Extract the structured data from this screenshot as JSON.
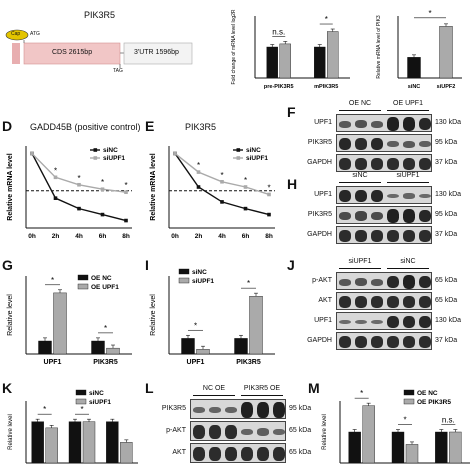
{
  "panelA": {
    "gene_title": "PIK3R5",
    "cap_label": "Cap",
    "start_codon": "ATG",
    "stop_codon": "TAG",
    "cds_label": "CDS 2615bp",
    "utr_label": "3'UTR 1596bp"
  },
  "panelB": {
    "chart_data": {
      "type": "bar",
      "ylabel": "Fold change of mRNA level log2R",
      "categories": [
        "pre-PIK3R5",
        "mPIK3R5"
      ],
      "series": [
        {
          "values": [
            1.0,
            1.0
          ],
          "color": "#111111"
        },
        {
          "values": [
            1.1,
            1.5
          ],
          "color": "#aaaaaa"
        }
      ],
      "ylim": [
        0,
        2
      ],
      "annotations": [
        "n.s.",
        "*"
      ]
    }
  },
  "panelC": {
    "chart_data": {
      "type": "bar",
      "ylabel": "Relative mRNA level of PIK3",
      "categories": [
        "siNC",
        "siUPF2"
      ],
      "values": [
        1.0,
        2.5
      ],
      "colors": [
        "#111111",
        "#aaaaaa"
      ],
      "ylim": [
        0,
        3
      ],
      "annotations": [
        "*"
      ]
    }
  },
  "panelD": {
    "title": "GADD45B (positive control)",
    "chart_data": {
      "type": "line",
      "ylabel": "Relative mRNA level",
      "x": [
        "0h",
        "2h",
        "4h",
        "6h",
        "8h"
      ],
      "series": [
        {
          "name": "siNC",
          "values": [
            100,
            40,
            26,
            18,
            10
          ],
          "color": "#111111"
        },
        {
          "name": "siUPF1",
          "values": [
            100,
            68,
            58,
            52,
            48
          ],
          "color": "#aaaaaa"
        }
      ],
      "ylim": [
        0,
        110
      ],
      "annotations": [
        "*",
        "*",
        "*",
        "*"
      ]
    }
  },
  "panelE": {
    "title": "PIK3R5",
    "chart_data": {
      "type": "line",
      "ylabel": "Relative mRNA level",
      "x": [
        "0h",
        "2h",
        "4h",
        "6h",
        "8h"
      ],
      "series": [
        {
          "name": "siNC",
          "values": [
            100,
            55,
            35,
            26,
            18
          ],
          "color": "#111111"
        },
        {
          "name": "siUPF1",
          "values": [
            100,
            75,
            62,
            55,
            45
          ],
          "color": "#aaaaaa"
        }
      ],
      "ylim": [
        0,
        110
      ],
      "annotations": [
        "*",
        "*",
        "*",
        "*"
      ]
    }
  },
  "panelF": {
    "groups": [
      "OE NC",
      "OE UPF1"
    ],
    "rows": [
      {
        "name": "UPF1",
        "kda": "130 kDa"
      },
      {
        "name": "PIK3R5",
        "kda": "95 kDa"
      },
      {
        "name": "GAPDH",
        "kda": "37 kDa"
      }
    ]
  },
  "panelH": {
    "groups": [
      "siNC",
      "siUPF1"
    ],
    "rows": [
      {
        "name": "UPF1",
        "kda": "130 kDa"
      },
      {
        "name": "PIK3R5",
        "kda": "95 kDa"
      },
      {
        "name": "GAPDH",
        "kda": "37 kDa"
      }
    ]
  },
  "panelG": {
    "chart_data": {
      "type": "bar",
      "ylabel": "Relative level",
      "categories": [
        "UPF1",
        "PIK3R5"
      ],
      "series": [
        {
          "name": "OE NC",
          "values": [
            1.0,
            1.0
          ],
          "color": "#111111"
        },
        {
          "name": "OE UPF1",
          "values": [
            4.7,
            0.45
          ],
          "color": "#aaaaaa"
        }
      ],
      "ylim": [
        0,
        6
      ],
      "annotations": [
        "*",
        "*"
      ]
    }
  },
  "panelI": {
    "chart_data": {
      "type": "bar",
      "ylabel": "Relative level",
      "categories": [
        "UPF1",
        "PIK3R5"
      ],
      "series": [
        {
          "name": "siNC",
          "values": [
            1.0,
            1.0
          ],
          "color": "#111111"
        },
        {
          "name": "siUPF1",
          "values": [
            0.3,
            3.7
          ],
          "color": "#aaaaaa"
        }
      ],
      "ylim": [
        0,
        5
      ],
      "annotations": [
        "*",
        "*"
      ]
    }
  },
  "panelJ": {
    "groups": [
      "siUPF1",
      "siNC"
    ],
    "rows": [
      {
        "name": "p-AKT",
        "kda": "65 kDa"
      },
      {
        "name": "AKT",
        "kda": "65 kDa"
      },
      {
        "name": "UPF1",
        "kda": "130 kDa"
      },
      {
        "name": "GAPDH",
        "kda": "37 kDa"
      }
    ]
  },
  "panelK": {
    "chart_data": {
      "type": "bar",
      "ylabel": "Relative level",
      "categories": [
        "",
        "",
        ""
      ],
      "series": [
        {
          "name": "siNC",
          "values": [
            1.0,
            1.0,
            1.0
          ],
          "color": "#111111"
        },
        {
          "name": "siUPF1",
          "values": [
            0.85,
            1.0,
            0.5
          ],
          "color": "#aaaaaa"
        }
      ],
      "ylim": [
        0,
        1.5
      ],
      "annotations": [
        "*",
        "*"
      ]
    }
  },
  "panelL": {
    "groups": [
      "NC OE",
      "PIK3R5 OE"
    ],
    "rows": [
      {
        "name": "PIK3R5",
        "kda": "95 kDa"
      },
      {
        "name": "p-AKT",
        "kda": "65 kDa"
      },
      {
        "name": "AKT",
        "kda": "65 kDa"
      }
    ]
  },
  "panelM": {
    "chart_data": {
      "type": "bar",
      "ylabel": "Relative level",
      "categories": [
        "",
        "",
        ""
      ],
      "series": [
        {
          "name": "OE NC",
          "values": [
            1.0,
            1.0,
            1.0
          ],
          "color": "#111111"
        },
        {
          "name": "OE PIK3R5",
          "values": [
            1.85,
            0.6,
            1.0
          ],
          "color": "#aaaaaa"
        }
      ],
      "ylim": [
        0,
        2
      ],
      "annotations": [
        "*",
        "*",
        "n.s."
      ]
    }
  },
  "letters": {
    "D": "D",
    "E": "E",
    "F": "F",
    "H": "H",
    "G": "G",
    "I": "I",
    "J": "J",
    "K": "K",
    "L": "L",
    "M": "M"
  }
}
